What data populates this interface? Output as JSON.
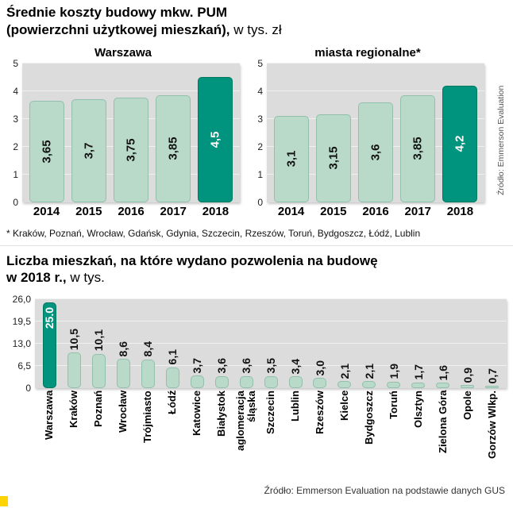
{
  "header": {
    "title_line1": "Średnie koszty budowy mkw. PUM",
    "title_line2_bold": "(powierzchni użytkowej mieszkań),",
    "title_line2_regular": "w tys. zł"
  },
  "top_section": {
    "source_vertical": "Źródło: Emmerson Evaluation",
    "footnote": "* Kraków, Poznań, Wrocław, Gdańsk, Gdynia, Szczecin, Rzeszów, Toruń, Bydgoszcz, Łódź, Lublin"
  },
  "bottom_section": {
    "title_line1": "Liczba mieszkań, na które wydano pozwolenia na budowę",
    "title_line2_bold": "w 2018 r.,",
    "title_line2_regular": "w tys.",
    "source": "Źródło: Emmerson Evaluation na podstawie danych GUS"
  },
  "colors": {
    "bar_fill": "#b9d9c9",
    "bar_border": "#93c0ac",
    "bar_highlight": "#00947f",
    "plot_background": "#dbdcdb",
    "gridline": "#eff1ef",
    "accent_yellow": "#ffd400"
  },
  "chart_data": [
    {
      "type": "bar",
      "title": "Warszawa",
      "categories": [
        "2014",
        "2015",
        "2016",
        "2017",
        "2018"
      ],
      "values": [
        3.65,
        3.7,
        3.75,
        3.85,
        4.5
      ],
      "value_labels": [
        "3,65",
        "3,7",
        "3,75",
        "3,85",
        "4,5"
      ],
      "ylim": [
        0,
        5
      ],
      "yticks": [
        {
          "v": 0,
          "label": "0"
        },
        {
          "v": 1,
          "label": "1"
        },
        {
          "v": 2,
          "label": "2"
        },
        {
          "v": 3,
          "label": "3"
        },
        {
          "v": 4,
          "label": "4"
        },
        {
          "v": 5,
          "label": "5"
        }
      ],
      "gridlines": [
        1,
        2,
        3,
        4,
        5
      ],
      "highlight_index": 4,
      "value_label_position": "inside",
      "grid": true,
      "legend": false
    },
    {
      "type": "bar",
      "title": "miasta regionalne*",
      "categories": [
        "2014",
        "2015",
        "2016",
        "2017",
        "2018"
      ],
      "values": [
        3.1,
        3.15,
        3.6,
        3.85,
        4.2
      ],
      "value_labels": [
        "3,1",
        "3,15",
        "3,6",
        "3,85",
        "4,2"
      ],
      "ylim": [
        0,
        5
      ],
      "yticks": [
        {
          "v": 0,
          "label": "0"
        },
        {
          "v": 1,
          "label": "1"
        },
        {
          "v": 2,
          "label": "2"
        },
        {
          "v": 3,
          "label": "3"
        },
        {
          "v": 4,
          "label": "4"
        },
        {
          "v": 5,
          "label": "5"
        }
      ],
      "gridlines": [
        1,
        2,
        3,
        4,
        5
      ],
      "highlight_index": 4,
      "value_label_position": "inside",
      "grid": true,
      "legend": false
    },
    {
      "type": "bar",
      "title": "Liczba mieszkań, na które wydano pozwolenia na budowę w 2018 r., w tys.",
      "categories": [
        "Warszawa",
        "Kraków",
        "Poznań",
        "Wrocław",
        "Trójmiasto",
        "Łódź",
        "Katowice",
        "Białystok",
        "aglomeracja śląska",
        "Szczecin",
        "Lublin",
        "Rzeszów",
        "Kielce",
        "Bydgoszcz",
        "Toruń",
        "Olsztyn",
        "Zielona Góra",
        "Opole",
        "Gorzów Wlkp."
      ],
      "values": [
        25.0,
        10.5,
        10.1,
        8.6,
        8.4,
        6.1,
        3.7,
        3.6,
        3.6,
        3.5,
        3.4,
        3.0,
        2.1,
        2.1,
        1.9,
        1.7,
        1.6,
        0.9,
        0.7
      ],
      "value_labels": [
        "25.0",
        "10,5",
        "10,1",
        "8,6",
        "8,4",
        "6,1",
        "3,7",
        "3,6",
        "3,6",
        "3,5",
        "3,4",
        "3,0",
        "2,1",
        "2,1",
        "1,9",
        "1,7",
        "1,6",
        "0,9",
        "0,7"
      ],
      "ylim": [
        0,
        26
      ],
      "yticks": [
        {
          "v": 0,
          "label": "0"
        },
        {
          "v": 6.5,
          "label": "6,5"
        },
        {
          "v": 13,
          "label": "13,0"
        },
        {
          "v": 19.5,
          "label": "19,5"
        },
        {
          "v": 26,
          "label": "26,0"
        }
      ],
      "gridlines": [
        6.5,
        13,
        19.5,
        26
      ],
      "highlight_index": 0,
      "value_label_position": "above",
      "grid": true,
      "legend": false
    }
  ]
}
